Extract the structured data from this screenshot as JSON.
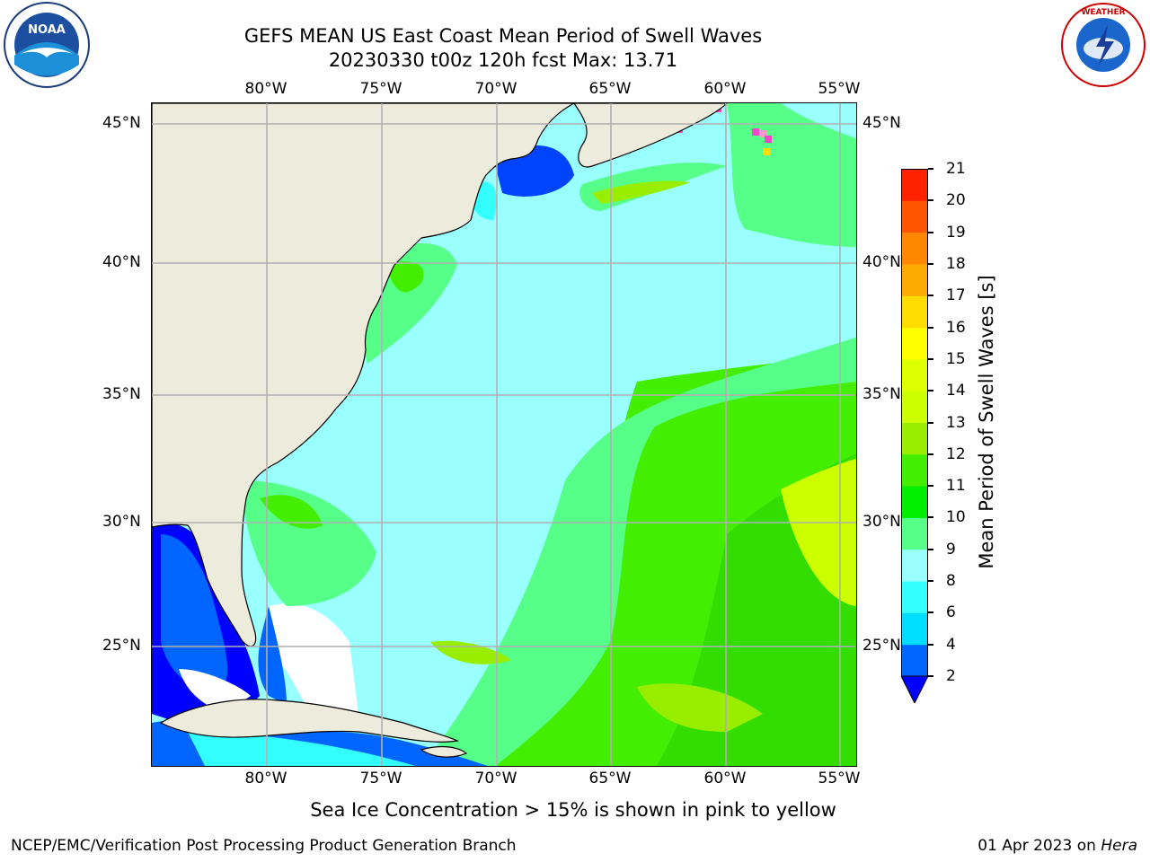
{
  "title": {
    "line1": "GEFS MEAN US East Coast Mean Period of Swell Waves",
    "line2": "20230330 t00z 120h fcst   Max: 13.71"
  },
  "map": {
    "lon_labels": [
      "80°W",
      "75°W",
      "70°W",
      "65°W",
      "60°W",
      "55°W"
    ],
    "lat_labels": [
      "45°N",
      "40°N",
      "35°N",
      "30°N",
      "25°N"
    ],
    "colors": {
      "land": "#ecebdc",
      "ocean_base": "#99ffff",
      "grid": "#b0b0b0",
      "coast": "#000000",
      "no_data": "#ffffff"
    }
  },
  "colorbar": {
    "label": "Mean Period of Swell Waves [s]",
    "ticks": [
      "2",
      "4",
      "6",
      "8",
      "9",
      "10",
      "11",
      "12",
      "13",
      "14",
      "15",
      "16",
      "17",
      "18",
      "19",
      "20",
      "21"
    ],
    "colors": [
      "#0066ff",
      "#00ddff",
      "#33ffff",
      "#99ffff",
      "#55ff88",
      "#00ee00",
      "#44ee00",
      "#99ee00",
      "#ccff00",
      "#ddff00",
      "#ffff00",
      "#ffdd00",
      "#ffaa00",
      "#ff8800",
      "#ff5500",
      "#ff2200",
      "#ff0000"
    ],
    "under_color": "#0000ff"
  },
  "note": "Sea Ice Concentration > 15% is shown in pink to yellow",
  "footer": {
    "left": "NCEP/EMC/Verification Post Processing Product Generation Branch",
    "date": "01 Apr 2023 on ",
    "machine": "Hera"
  },
  "logos": {
    "left": "noaa-logo",
    "right": "nws-logo"
  }
}
